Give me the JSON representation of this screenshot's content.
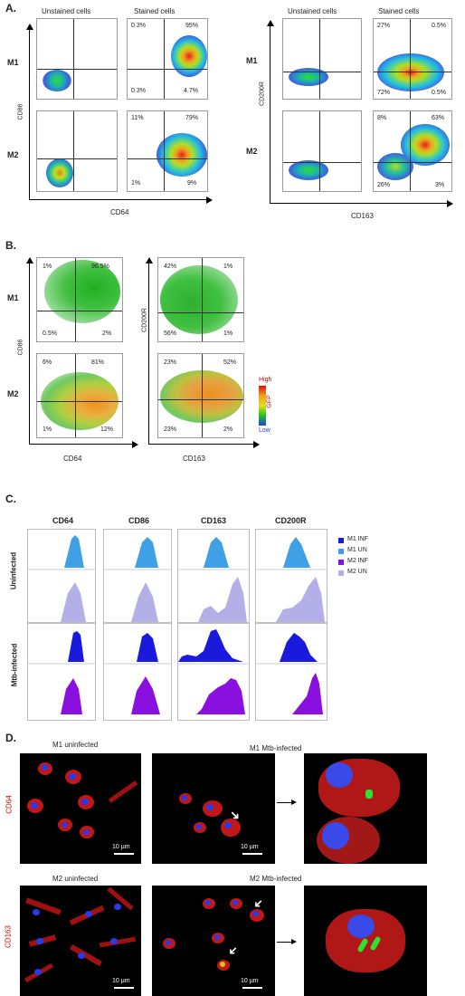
{
  "panel_letters": {
    "a": "A.",
    "b": "B.",
    "c": "C.",
    "d": "D."
  },
  "panelA": {
    "col_unstained": "Unstained cells",
    "col_stained": "Stained cells",
    "row_m1": "M1",
    "row_m2": "M2",
    "left_yaxis": "CD86",
    "left_xaxis": "CD64",
    "right_yaxis": "CD200R",
    "right_xaxis": "CD163",
    "left_m1_quadrants": {
      "ul": "0.3%",
      "ur": "95%",
      "ll": "0.3%",
      "lr": "4.7%"
    },
    "left_m2_quadrants": {
      "ul": "11%",
      "ur": "79%",
      "ll": "1%",
      "lr": "9%"
    },
    "right_m1_quadrants": {
      "ul": "27%",
      "ur": "0.5%",
      "ll": "72%",
      "lr": "0.5%"
    },
    "right_m2_quadrants": {
      "ul": "8%",
      "ur": "63%",
      "ll": "26%",
      "lr": "3%"
    }
  },
  "panelB": {
    "row_m1": "M1",
    "row_m2": "M2",
    "left_yaxis": "CD86",
    "left_xaxis": "CD64",
    "right_yaxis": "CD200R",
    "right_xaxis": "CD163",
    "left_m1_quadrants": {
      "ul": "1%",
      "ur": "96.5%",
      "ll": "0.5%",
      "lr": "2%"
    },
    "left_m2_quadrants": {
      "ul": "6%",
      "ur": "81%",
      "ll": "1%",
      "lr": "12%"
    },
    "right_m1_quadrants": {
      "ul": "42%",
      "ur": "1%",
      "ll": "56%",
      "lr": "1%"
    },
    "right_m2_quadrants": {
      "ul": "23%",
      "ur": "52%",
      "ll": "23%",
      "lr": "2%"
    },
    "colorbar": {
      "high": "High",
      "low": "Low",
      "label": "GFP"
    }
  },
  "panelC": {
    "columns": [
      "CD64",
      "CD86",
      "CD163",
      "CD200R"
    ],
    "row_uninfected": "Uninfected",
    "row_infected": "Mtb-infected",
    "legend": [
      {
        "label": "M1 INF",
        "color": "#1a1adc"
      },
      {
        "label": "M1 UN",
        "color": "#3fa0e6"
      },
      {
        "label": "M2 INF",
        "color": "#8a10e0"
      },
      {
        "label": "M2 UN",
        "color": "#b3b0e8"
      }
    ]
  },
  "panelD": {
    "m1_uninfected": "M1 uninfected",
    "m1_infected": "M1 Mtb-infected",
    "m2_uninfected": "M2 uninfected",
    "m2_infected": "M2 Mtb-infected",
    "marker_top": "CD64",
    "marker_bottom": "CD163",
    "scale": "10 µm"
  },
  "colors": {
    "m1_un": "#3fa0e6",
    "m2_un": "#b3b0e8",
    "m1_inf": "#1a1adc",
    "m2_inf": "#8a10e0",
    "marker_red": "#d00000"
  }
}
